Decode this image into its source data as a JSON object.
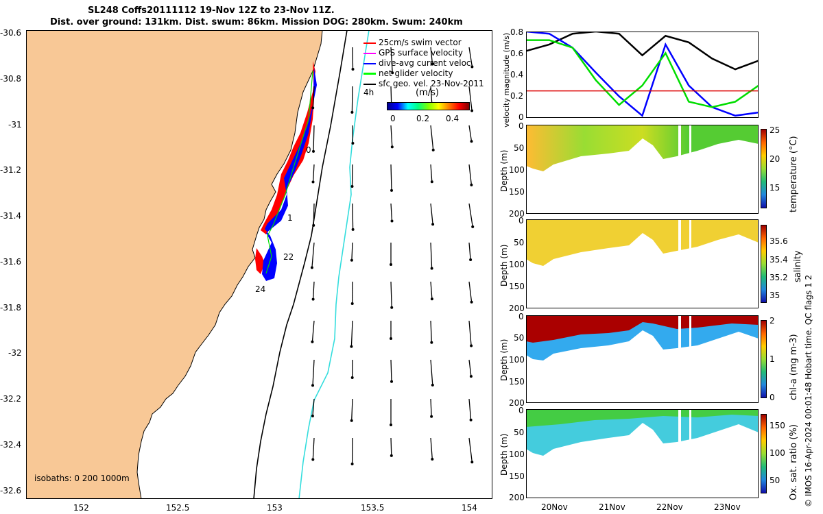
{
  "title": {
    "line1": "SL248 Coffs20111112 19-Nov 12Z to 23-Nov 11Z.",
    "line2": "Dist. over ground: 131km. Dist. swum: 86km. Mission DOG: 280km. Swum: 240km"
  },
  "map": {
    "lon_ticks": [
      "152",
      "152.5",
      "153",
      "153.5",
      "154"
    ],
    "lat_ticks": [
      "-30.6",
      "-30.8",
      "-31",
      "-31.2",
      "-31.4",
      "-31.6",
      "-31.8",
      "-32",
      "-32.2",
      "-32.4",
      "-32.6"
    ],
    "legend": [
      {
        "label": "25cm/s swim vector",
        "color": "#ff0000"
      },
      {
        "label": "GPS surface velocity",
        "color": "#ff00ff"
      },
      {
        "label": "dive-avg current veloc.",
        "color": "#0000ff"
      },
      {
        "label": "net glider velocity",
        "color": "#00ff00"
      },
      {
        "label": "sfc geo. vel. 23-Nov-2011",
        "color": "#000000"
      }
    ],
    "colorbar_label": "(m/s)",
    "colorbar_ticks": [
      "0",
      "0.2",
      "0.4"
    ],
    "track_labels": [
      "4h",
      "0",
      "1",
      "22",
      "24"
    ],
    "isobaths": "isobaths: 0   200  1000m",
    "land_color": "#f8c896",
    "isobath_200_color": "#000000",
    "isobath_1000_color": "#33dddd"
  },
  "chart_data": [
    {
      "type": "line",
      "ylabel": "velocity magnitude (m/s)",
      "ylim": [
        0,
        0.8
      ],
      "y_ticks": [
        "0.8",
        "0.6",
        "0.4",
        "0.2",
        "0"
      ],
      "xlim": [
        "19-Nov 12Z",
        "23-Nov 11Z"
      ],
      "series": [
        {
          "color": "#000000",
          "x": [
            0,
            0.1,
            0.2,
            0.3,
            0.4,
            0.5,
            0.6,
            0.7,
            0.8,
            0.9,
            1.0
          ],
          "values": [
            0.62,
            0.68,
            0.78,
            0.8,
            0.78,
            0.58,
            0.76,
            0.7,
            0.55,
            0.45,
            0.53
          ]
        },
        {
          "color": "#0000ff",
          "x": [
            0,
            0.1,
            0.2,
            0.3,
            0.4,
            0.5,
            0.6,
            0.7,
            0.8,
            0.9,
            1.0
          ],
          "values": [
            0.85,
            0.78,
            0.65,
            0.42,
            0.2,
            0.02,
            0.68,
            0.3,
            0.1,
            0.02,
            0.05
          ]
        },
        {
          "color": "#00dd00",
          "x": [
            0,
            0.1,
            0.2,
            0.3,
            0.4,
            0.5,
            0.6,
            0.7,
            0.8,
            0.9,
            1.0
          ],
          "values": [
            0.72,
            0.72,
            0.65,
            0.35,
            0.12,
            0.3,
            0.6,
            0.15,
            0.1,
            0.15,
            0.3
          ]
        },
        {
          "color": "#dd0000",
          "x": [
            0,
            1.0
          ],
          "values": [
            0.25,
            0.25
          ]
        }
      ]
    },
    {
      "type": "heatmap",
      "ylabel": "Depth (m)",
      "colorbar_label": "temperature (°C)",
      "y_ticks": [
        "0",
        "50",
        "100",
        "150",
        "200"
      ],
      "colorbar_ticks": [
        "25",
        "20",
        "15"
      ]
    },
    {
      "type": "heatmap",
      "ylabel": "Depth (m)",
      "colorbar_label": "salinity",
      "y_ticks": [
        "0",
        "50",
        "100",
        "150",
        "200"
      ],
      "colorbar_ticks": [
        "35.6",
        "35.4",
        "35.2",
        "35"
      ]
    },
    {
      "type": "heatmap",
      "ylabel": "Depth (m)",
      "colorbar_label": "chl-a (mg m-3)",
      "y_ticks": [
        "0",
        "50",
        "100",
        "150",
        "200"
      ],
      "colorbar_ticks": [
        "2",
        "1",
        "0"
      ]
    },
    {
      "type": "heatmap",
      "ylabel": "Depth (m)",
      "colorbar_label": "Ox. sat. ratio (%)",
      "y_ticks": [
        "0",
        "50",
        "100",
        "150",
        "200"
      ],
      "colorbar_ticks": [
        "150",
        "100",
        "50"
      ]
    }
  ],
  "time_ticks": [
    "20Nov",
    "21Nov",
    "22Nov",
    "23Nov"
  ],
  "credit": "© IMOS 16-Apr-2024 00:01:48 Hobart time. QC flags 1  2"
}
